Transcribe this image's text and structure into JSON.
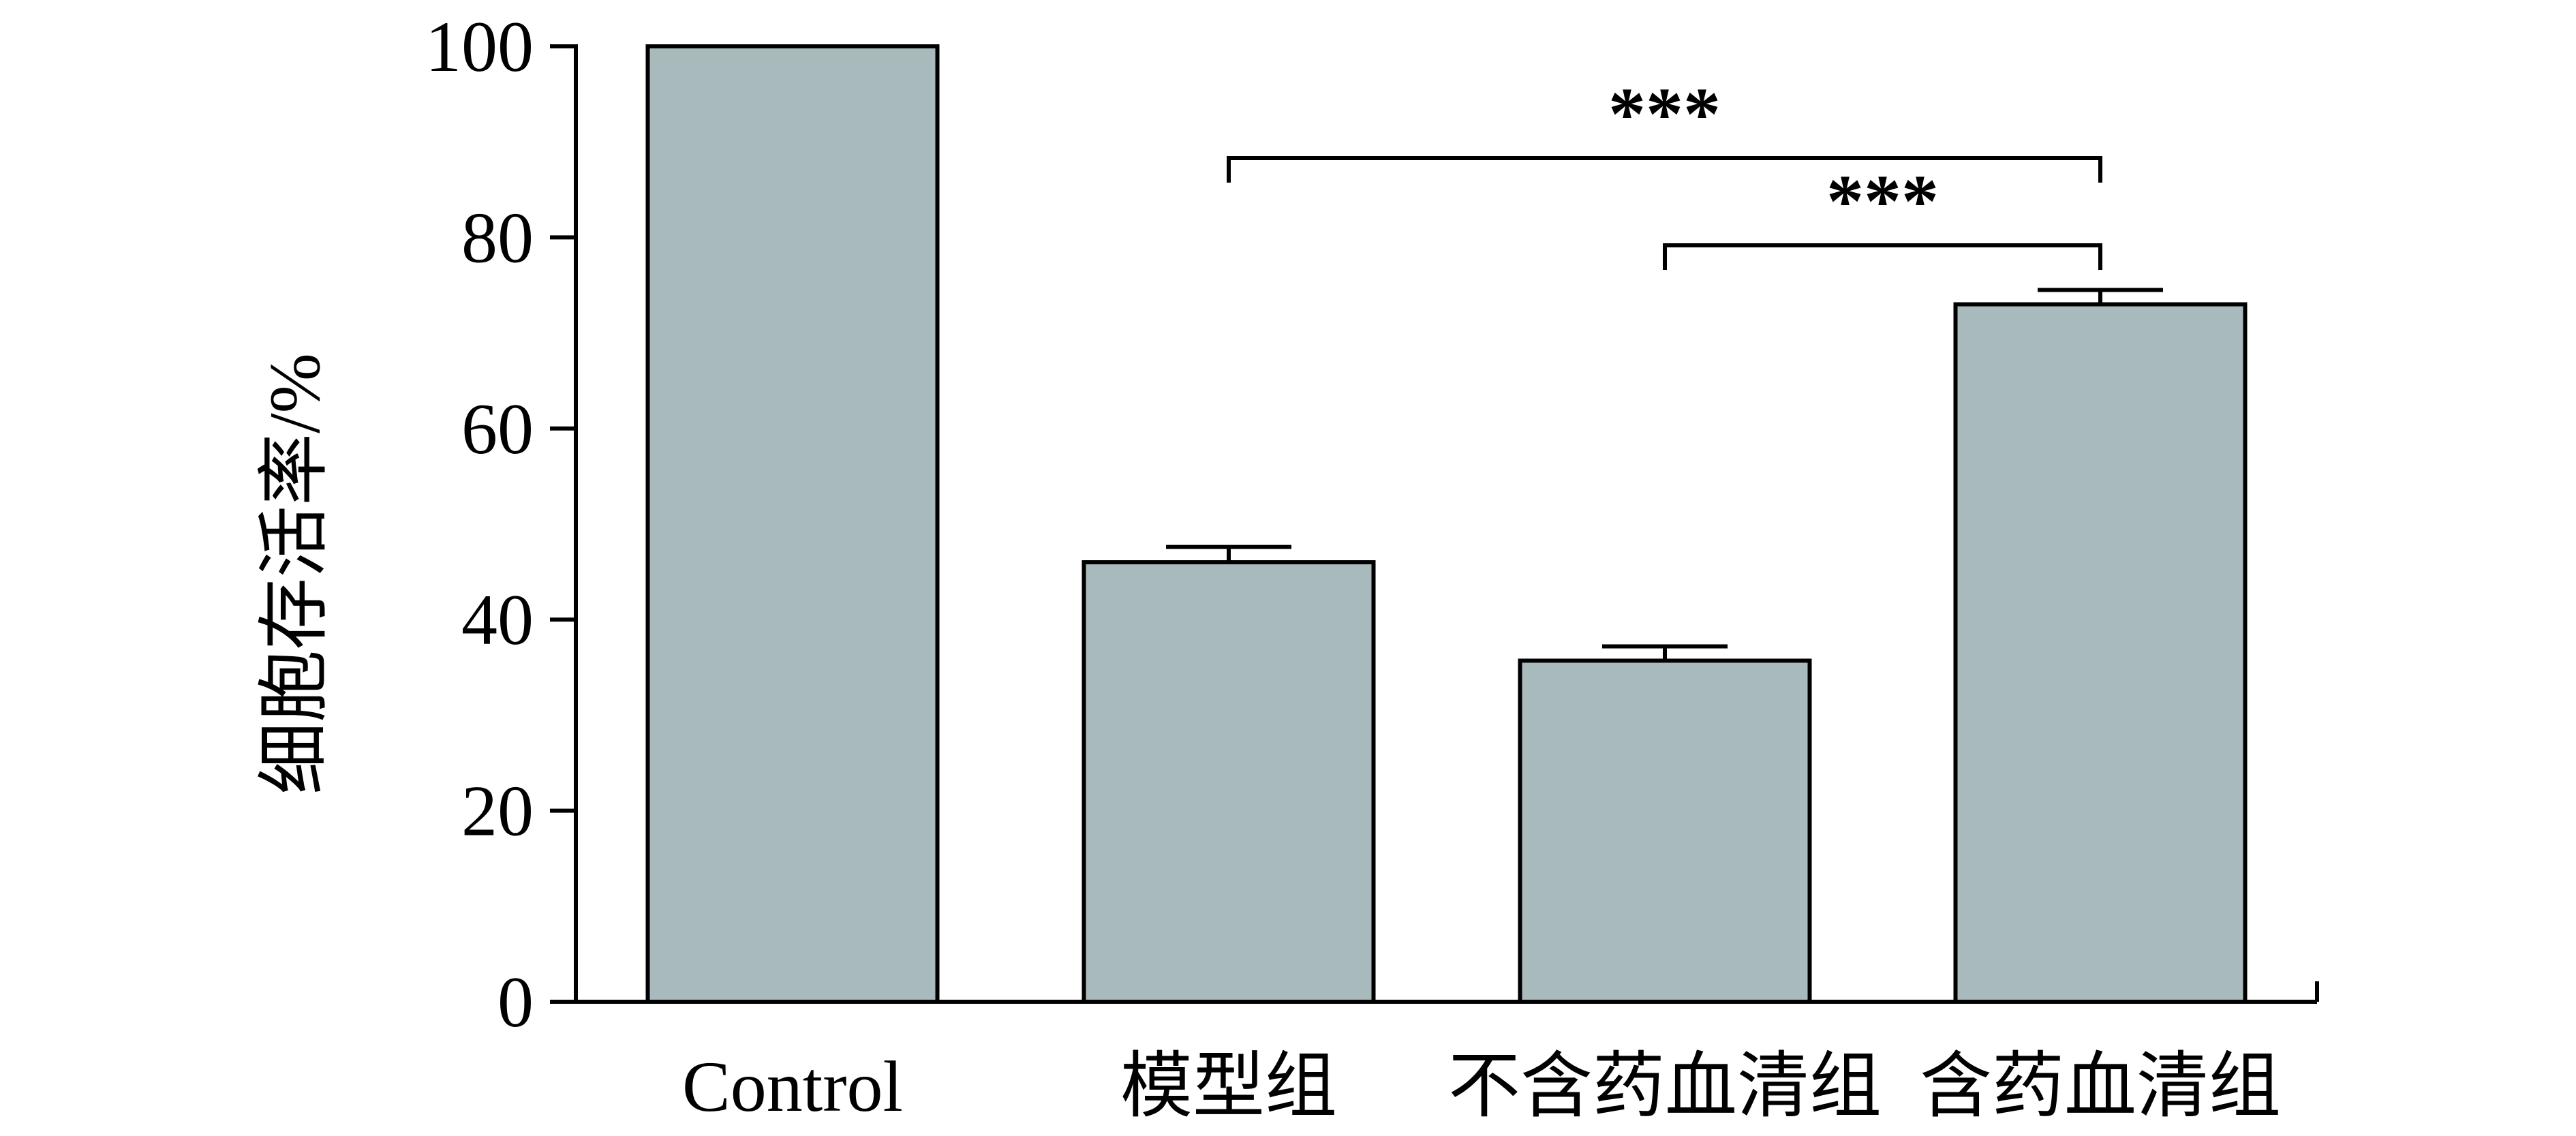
{
  "chart_data": {
    "type": "bar",
    "title": "",
    "xlabel": "",
    "ylabel": "细胞存活率/%",
    "ylim": [
      0,
      100
    ],
    "yticks": [
      0,
      20,
      40,
      60,
      80,
      100
    ],
    "ytick_labels": [
      "0",
      "20",
      "40",
      "60",
      "80",
      "100"
    ],
    "categories": [
      "Control",
      "模型组",
      "不含药血清组",
      "含药血清组"
    ],
    "values": [
      100,
      46,
      35.7,
      73
    ],
    "errors": [
      0,
      1.6,
      1.5,
      1.5
    ],
    "bar_color": "#a9babd",
    "edge_color": "#000000",
    "grid": false,
    "legend": "none",
    "significance": [
      {
        "from": 1,
        "to": 3,
        "label": "***"
      },
      {
        "from": 2,
        "to": 3,
        "label": "***"
      }
    ]
  }
}
